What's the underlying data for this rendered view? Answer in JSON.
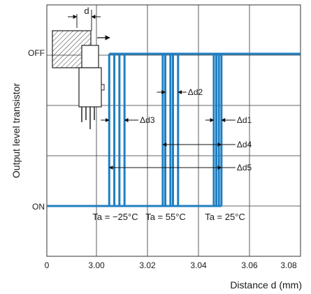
{
  "chart_data": {
    "type": "line",
    "ylabel": "Output level transistor",
    "xlabel": "Distance d (mm)",
    "x_origin_label": "0",
    "x_ticks": [
      "3.00",
      "3.02",
      "3.04",
      "3.06",
      "3.08"
    ],
    "xlim": [
      2.99,
      3.08
    ],
    "y_states": [
      "ON",
      "OFF"
    ],
    "grid": true,
    "line_color": "#1f7fc2",
    "series": [
      {
        "name": "Ta = −25°C",
        "transitions": [
          3.005,
          3.007,
          3.009,
          3.011
        ]
      },
      {
        "name": "Ta = 55°C",
        "transitions": [
          3.026,
          3.027,
          3.029,
          3.03,
          3.032
        ]
      },
      {
        "name": "Ta = 25°C",
        "transitions": [
          3.046,
          3.047,
          3.048,
          3.049
        ]
      }
    ],
    "annotations": [
      {
        "label": "Δd1",
        "from": 3.046,
        "to": 3.049
      },
      {
        "label": "Δd2",
        "from": 3.027,
        "to": 3.032
      },
      {
        "label": "Δd3",
        "from": 3.005,
        "to": 3.011
      },
      {
        "label": "Δd4",
        "from": 3.026,
        "to": 3.049
      },
      {
        "label": "Δd5",
        "from": 3.005,
        "to": 3.049
      }
    ],
    "inset": {
      "label": "d"
    }
  }
}
